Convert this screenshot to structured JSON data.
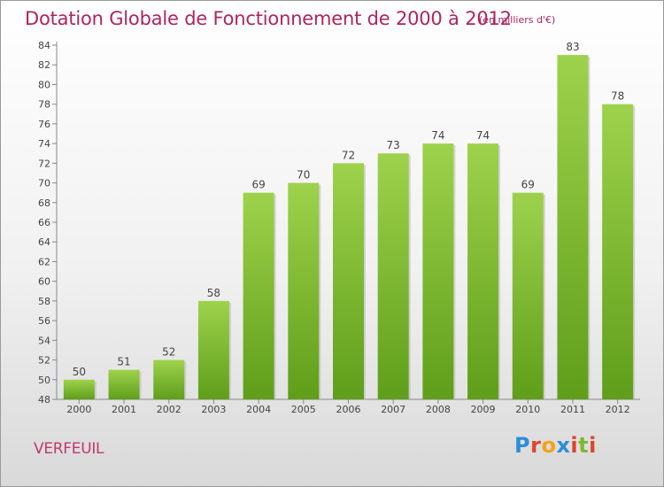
{
  "title": "Dotation Globale de Fonctionnement de 2000 à 2012",
  "subtitle": "(en milliers d'€)",
  "commune": "VERFEUIL",
  "logo": {
    "letters": [
      "P",
      "r",
      "o",
      "x",
      "i",
      "t",
      "i"
    ],
    "colors": [
      "#2a8fd6",
      "#e0432b",
      "#f3a21b",
      "#2a8fd6",
      "#e0432b",
      "#7cb82e",
      "#e0432b"
    ]
  },
  "colors": {
    "title": "#b0245e",
    "bar_top": "#9ed24c",
    "bar_bottom": "#5f9e1a",
    "axis": "#888888"
  },
  "chart_data": {
    "type": "bar",
    "categories": [
      "2000",
      "2001",
      "2002",
      "2003",
      "2004",
      "2005",
      "2006",
      "2007",
      "2008",
      "2009",
      "2010",
      "2011",
      "2012"
    ],
    "values": [
      50,
      51,
      52,
      58,
      69,
      70,
      72,
      73,
      74,
      74,
      69,
      83,
      78
    ],
    "ylim": [
      48,
      84
    ],
    "yticks": [
      48,
      50,
      52,
      54,
      56,
      58,
      60,
      62,
      64,
      66,
      68,
      70,
      72,
      74,
      76,
      78,
      80,
      82,
      84
    ],
    "grid": false,
    "legend": "none",
    "data_labels": true
  }
}
